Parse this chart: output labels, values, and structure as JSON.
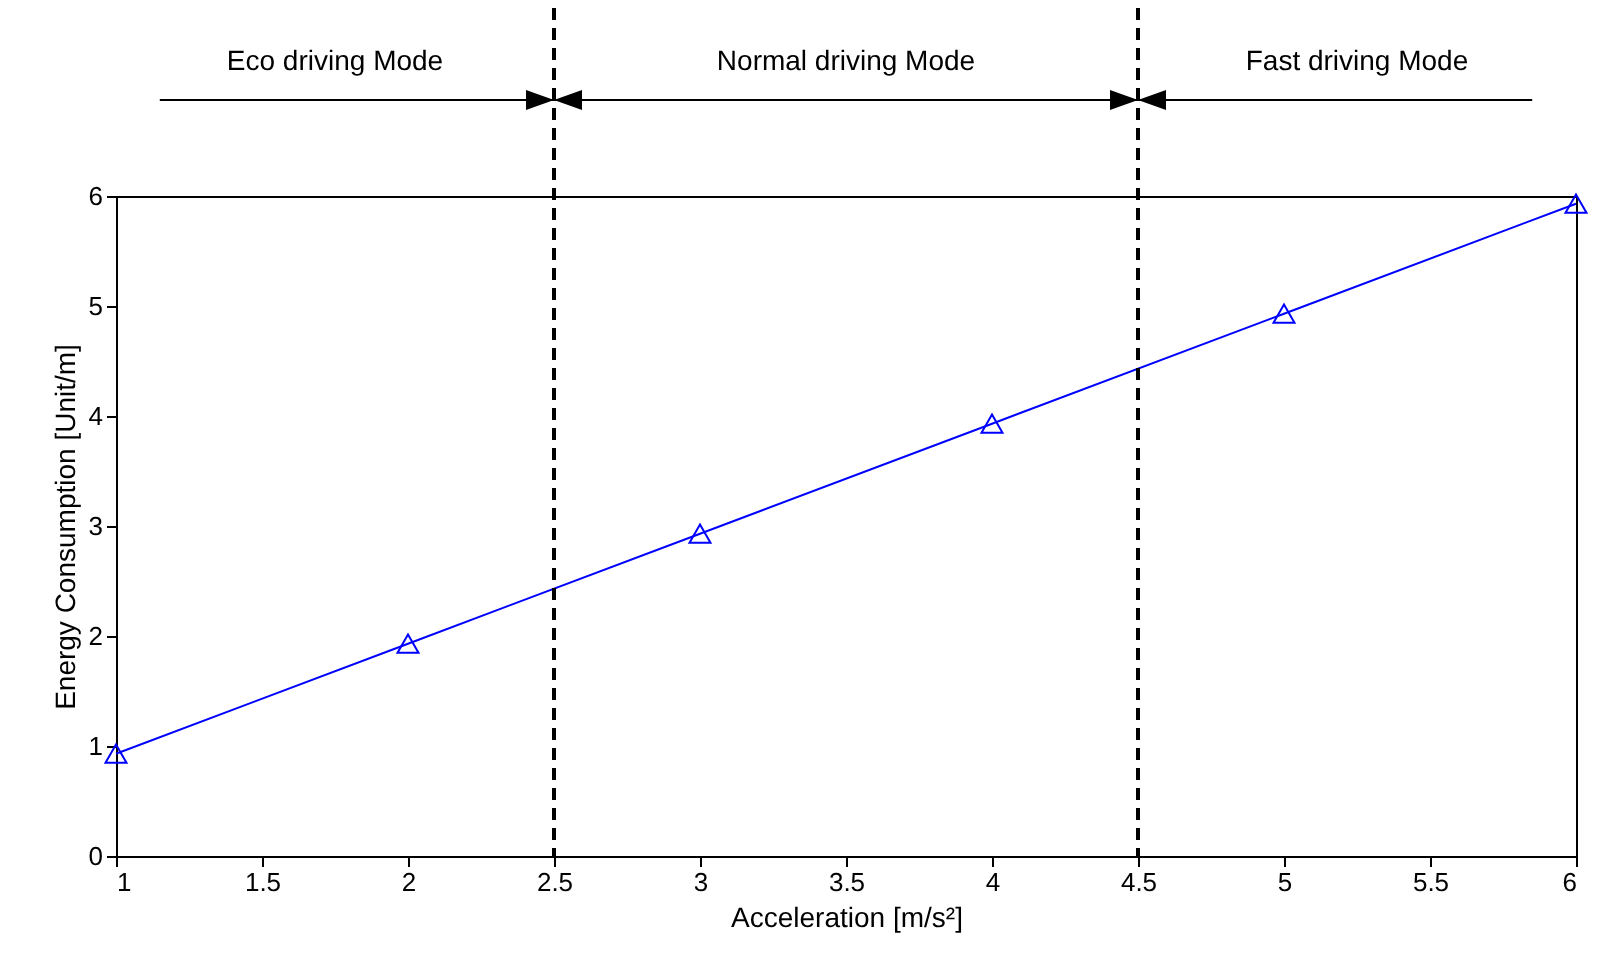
{
  "chart_data": {
    "type": "line",
    "xlabel": "Acceleration [m/s²]",
    "ylabel": "Energy Consumption [Unit/m]",
    "x": [
      1,
      2,
      3,
      4,
      5,
      6
    ],
    "series": [
      {
        "color": "#0000ff",
        "values": [
          0.93,
          1.93,
          2.93,
          3.93,
          4.93,
          5.93
        ]
      }
    ],
    "xlim": [
      1,
      6
    ],
    "xticks": [
      1,
      1.5,
      2,
      2.5,
      3,
      3.5,
      4,
      4.5,
      5,
      5.5,
      6
    ],
    "ylim": [
      0,
      6
    ],
    "yticks": [
      0,
      1,
      2,
      3,
      4,
      5,
      6
    ],
    "ref_lines": [
      {
        "axis": "x",
        "value": 2.5,
        "color": "#000000",
        "line_style": "dashed"
      },
      {
        "axis": "x",
        "value": 4.5,
        "color": "#000000",
        "line_style": "dashed"
      }
    ],
    "annotations": [
      "Eco driving Mode",
      "Normal driving Mode",
      "Fast driving Mode"
    ],
    "marker": "triangle",
    "line_style": "solid"
  }
}
